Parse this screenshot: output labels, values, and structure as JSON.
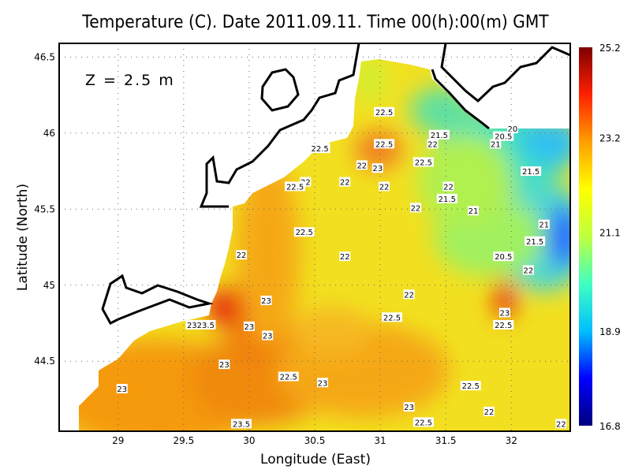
{
  "chart_data": {
    "type": "heatmap",
    "title": "Temperature (C). Date 2011.09.11. Time 00(h):00(m) GMT",
    "xlabel": "Longitude (East)",
    "ylabel": "Latitude (North)",
    "annotation": "Z = 2.5 m",
    "xlim": [
      28.55,
      32.45
    ],
    "ylim": [
      44.04,
      46.59
    ],
    "xticks": [
      "29",
      "29.5",
      "30",
      "30.5",
      "31",
      "31.5",
      "32"
    ],
    "yticks": [
      "44.5",
      "45",
      "45.5",
      "46",
      "46.5"
    ],
    "grid": true,
    "colorbar": {
      "ticks": [
        "16.8",
        "18.9",
        "21.1",
        "23.2",
        "25.2"
      ],
      "range": [
        16.8,
        25.2
      ],
      "colorscale": [
        "#00007f",
        "#0000ff",
        "#00bfff",
        "#40ffc0",
        "#c0ff40",
        "#ffff00",
        "#ff9f00",
        "#ff2000",
        "#7f0000"
      ]
    },
    "contour_labels": [
      {
        "text": "22.5",
        "lon": 31.03,
        "lat": 46.14
      },
      {
        "text": "22.5",
        "lon": 31.03,
        "lat": 45.93
      },
      {
        "text": "21.5",
        "lon": 31.45,
        "lat": 45.99
      },
      {
        "text": "22",
        "lon": 31.4,
        "lat": 45.93
      },
      {
        "text": "20",
        "lon": 32.01,
        "lat": 46.03
      },
      {
        "text": "20.5",
        "lon": 31.94,
        "lat": 45.98
      },
      {
        "text": "21",
        "lon": 31.88,
        "lat": 45.93
      },
      {
        "text": "22.5",
        "lon": 30.54,
        "lat": 45.9
      },
      {
        "text": "22",
        "lon": 30.86,
        "lat": 45.79
      },
      {
        "text": "23",
        "lon": 30.98,
        "lat": 45.77
      },
      {
        "text": "22.5",
        "lon": 31.33,
        "lat": 45.81
      },
      {
        "text": "22",
        "lon": 30.43,
        "lat": 45.68
      },
      {
        "text": "22.5",
        "lon": 30.35,
        "lat": 45.65
      },
      {
        "text": "22",
        "lon": 30.73,
        "lat": 45.68
      },
      {
        "text": "22",
        "lon": 31.03,
        "lat": 45.65
      },
      {
        "text": "22",
        "lon": 31.52,
        "lat": 45.65
      },
      {
        "text": "21.5",
        "lon": 32.15,
        "lat": 45.75
      },
      {
        "text": "21.5",
        "lon": 31.51,
        "lat": 45.57
      },
      {
        "text": "22",
        "lon": 31.27,
        "lat": 45.51
      },
      {
        "text": "21",
        "lon": 31.71,
        "lat": 45.49
      },
      {
        "text": "21",
        "lon": 32.25,
        "lat": 45.4
      },
      {
        "text": "22.5",
        "lon": 30.42,
        "lat": 45.35
      },
      {
        "text": "21.5",
        "lon": 32.18,
        "lat": 45.29
      },
      {
        "text": "22",
        "lon": 29.94,
        "lat": 45.2
      },
      {
        "text": "22",
        "lon": 30.73,
        "lat": 45.19
      },
      {
        "text": "20.5",
        "lon": 31.94,
        "lat": 45.19
      },
      {
        "text": "22",
        "lon": 32.13,
        "lat": 45.1
      },
      {
        "text": "23",
        "lon": 30.13,
        "lat": 44.9
      },
      {
        "text": "22",
        "lon": 31.22,
        "lat": 44.94
      },
      {
        "text": "23",
        "lon": 31.95,
        "lat": 44.82
      },
      {
        "text": "22.5",
        "lon": 31.09,
        "lat": 44.79
      },
      {
        "text": "22.5",
        "lon": 31.94,
        "lat": 44.74
      },
      {
        "text": "2323.5",
        "lon": 29.63,
        "lat": 44.74
      },
      {
        "text": "23",
        "lon": 30.0,
        "lat": 44.73
      },
      {
        "text": "23",
        "lon": 30.14,
        "lat": 44.67
      },
      {
        "text": "23",
        "lon": 29.81,
        "lat": 44.48
      },
      {
        "text": "22.5",
        "lon": 30.3,
        "lat": 44.4
      },
      {
        "text": "23",
        "lon": 30.56,
        "lat": 44.36
      },
      {
        "text": "23",
        "lon": 29.03,
        "lat": 44.32
      },
      {
        "text": "22.5",
        "lon": 31.69,
        "lat": 44.34
      },
      {
        "text": "23",
        "lon": 31.22,
        "lat": 44.2
      },
      {
        "text": "22",
        "lon": 31.83,
        "lat": 44.17
      },
      {
        "text": "23.5",
        "lon": 29.94,
        "lat": 44.09
      },
      {
        "text": "22.5",
        "lon": 31.33,
        "lat": 44.1
      },
      {
        "text": "22",
        "lon": 32.38,
        "lat": 44.09
      }
    ]
  }
}
